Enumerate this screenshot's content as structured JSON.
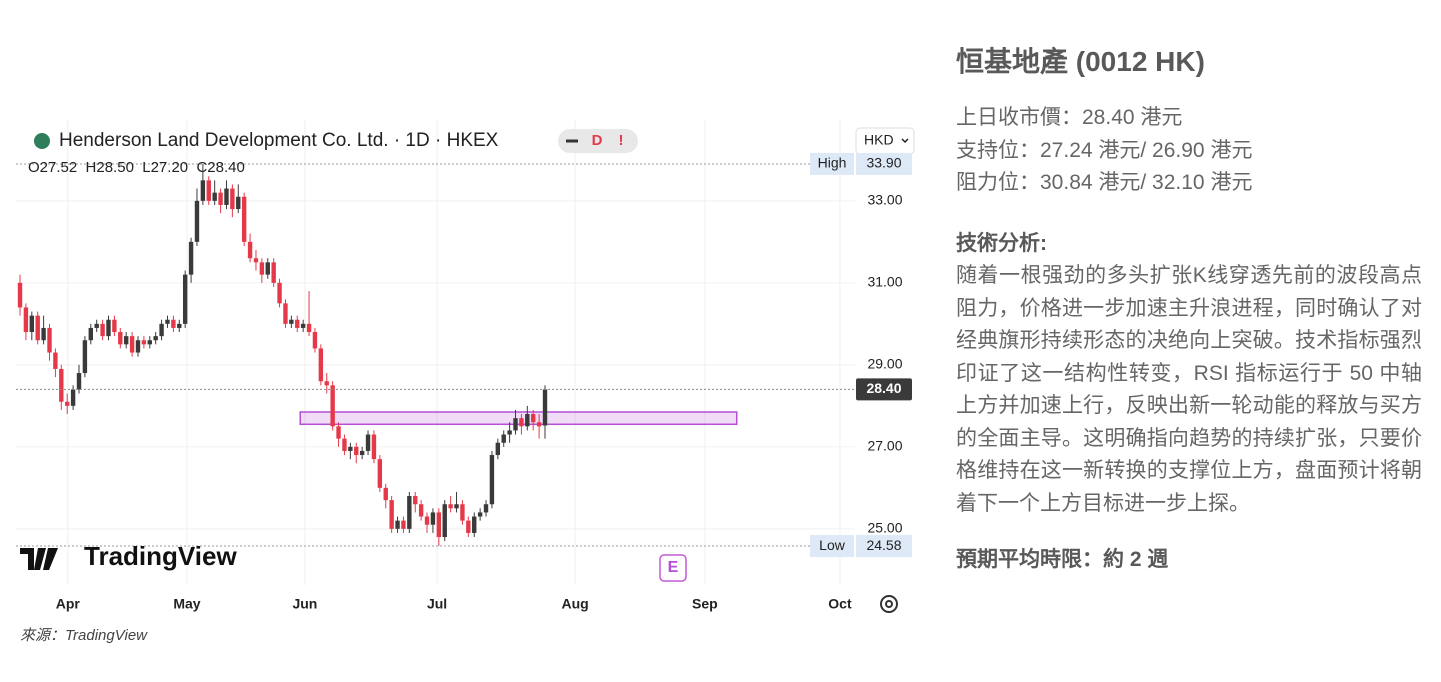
{
  "chart_data": {
    "type": "candlestick",
    "title": "Henderson Land Development Co. Ltd. · 1D · HKEX",
    "badges": [
      "D",
      "!"
    ],
    "currency": "HKD",
    "ohlc_text": "O27.52  H28.50  L27.20  C28.40",
    "logo": "TradingView",
    "event_marker": "E",
    "up_color": "#3a3a3a",
    "down_color": "#e5394a",
    "open": [
      31.0,
      30.4,
      29.8,
      30.2,
      29.6,
      29.9,
      29.3,
      28.9,
      28.1,
      28.0,
      28.4,
      28.8,
      29.6,
      29.9,
      30.0,
      29.7,
      30.1,
      29.8,
      29.5,
      29.7,
      29.3,
      29.6,
      29.5,
      29.6,
      29.7,
      30.0,
      30.1,
      29.9,
      30.0,
      31.2,
      32.0,
      33.0,
      33.5,
      33.0,
      33.2,
      32.9,
      33.3,
      32.8,
      33.1,
      32.0,
      31.6,
      31.5,
      31.2,
      31.5,
      31.0,
      30.5,
      30.0,
      30.1,
      29.9,
      30.0,
      29.8,
      29.4,
      28.6,
      28.5,
      27.5,
      27.2,
      26.9,
      27.0,
      26.8,
      26.9,
      27.3,
      26.7,
      26.0,
      25.7,
      25.0,
      25.2,
      25.0,
      25.8,
      25.6,
      25.3,
      25.1,
      25.4,
      24.8,
      25.6,
      25.5,
      25.6,
      25.2,
      24.9,
      25.3,
      25.4,
      25.6,
      26.8,
      27.1,
      27.3,
      27.4,
      27.7,
      27.5,
      27.8,
      27.6,
      27.52
    ],
    "high": [
      31.2,
      30.5,
      30.3,
      30.3,
      30.2,
      30.0,
      29.4,
      29.0,
      28.3,
      28.5,
      29.0,
      29.7,
      30.0,
      30.1,
      30.1,
      30.2,
      30.2,
      29.9,
      29.8,
      29.8,
      29.7,
      29.7,
      29.7,
      29.8,
      30.1,
      30.2,
      30.2,
      30.1,
      31.3,
      32.1,
      33.3,
      33.9,
      33.6,
      33.5,
      33.3,
      33.5,
      33.4,
      33.4,
      33.2,
      32.2,
      31.8,
      31.6,
      31.6,
      31.6,
      31.1,
      30.6,
      30.2,
      30.2,
      30.1,
      30.8,
      29.9,
      29.5,
      28.8,
      28.6,
      27.6,
      27.3,
      27.1,
      27.1,
      27.0,
      27.4,
      27.4,
      26.8,
      26.1,
      25.8,
      25.3,
      25.3,
      25.9,
      25.9,
      25.7,
      25.4,
      25.5,
      25.5,
      25.7,
      25.8,
      25.9,
      25.7,
      25.3,
      25.4,
      25.5,
      25.7,
      26.9,
      27.2,
      27.4,
      27.6,
      27.9,
      27.8,
      28.0,
      27.9,
      27.8,
      28.5
    ],
    "low": [
      30.2,
      29.6,
      29.6,
      29.5,
      29.5,
      29.1,
      28.7,
      27.9,
      27.8,
      27.9,
      28.3,
      28.7,
      29.5,
      29.8,
      29.6,
      29.6,
      29.7,
      29.4,
      29.4,
      29.2,
      29.2,
      29.4,
      29.4,
      29.5,
      29.6,
      29.9,
      29.8,
      29.8,
      29.9,
      31.0,
      31.9,
      32.9,
      32.9,
      32.9,
      32.7,
      32.8,
      32.6,
      32.7,
      31.9,
      31.5,
      31.3,
      31.0,
      31.1,
      30.9,
      30.4,
      29.9,
      29.9,
      29.8,
      29.8,
      29.7,
      29.3,
      28.5,
      28.3,
      27.4,
      27.0,
      26.8,
      26.7,
      26.6,
      26.7,
      26.8,
      26.6,
      25.9,
      25.5,
      24.9,
      24.9,
      24.9,
      24.9,
      25.4,
      25.2,
      24.9,
      24.9,
      24.58,
      24.7,
      25.4,
      25.4,
      25.1,
      24.8,
      24.8,
      25.2,
      25.3,
      25.5,
      26.7,
      27.0,
      27.1,
      27.3,
      27.3,
      27.4,
      27.4,
      27.2,
      27.2
    ],
    "close": [
      30.4,
      29.8,
      30.2,
      29.6,
      29.9,
      29.3,
      28.9,
      28.1,
      28.0,
      28.4,
      28.8,
      29.6,
      29.9,
      30.0,
      29.7,
      30.1,
      29.8,
      29.5,
      29.7,
      29.3,
      29.6,
      29.5,
      29.6,
      29.7,
      30.0,
      30.1,
      29.9,
      30.0,
      31.2,
      32.0,
      33.0,
      33.5,
      33.0,
      33.2,
      32.9,
      33.3,
      32.8,
      33.1,
      32.0,
      31.6,
      31.5,
      31.2,
      31.5,
      31.0,
      30.5,
      30.0,
      30.1,
      29.9,
      30.0,
      29.8,
      29.4,
      28.6,
      28.5,
      27.5,
      27.2,
      26.9,
      27.0,
      26.8,
      26.9,
      27.3,
      26.7,
      26.0,
      25.7,
      25.0,
      25.2,
      25.0,
      25.8,
      25.6,
      25.3,
      25.1,
      25.4,
      24.8,
      25.6,
      25.5,
      25.6,
      25.2,
      24.9,
      25.3,
      25.4,
      25.6,
      26.8,
      27.1,
      27.3,
      27.4,
      27.7,
      27.5,
      27.8,
      27.6,
      27.5,
      28.4
    ],
    "xlim": [
      -0.68,
      141.55
    ],
    "xticks": [
      {
        "value": 8.1,
        "label": "Apr"
      },
      {
        "value": 28.3,
        "label": "May"
      },
      {
        "value": 48.3,
        "label": "Jun"
      },
      {
        "value": 70.7,
        "label": "Jul"
      },
      {
        "value": 94.1,
        "label": "Aug"
      },
      {
        "value": 116.1,
        "label": "Sep"
      },
      {
        "value": 139.0,
        "label": "Oct"
      }
    ],
    "ylim": [
      23.63,
      34.24
    ],
    "yticks": [
      {
        "value": 25,
        "label": "25.00"
      },
      {
        "value": 27,
        "label": "27.00"
      },
      {
        "value": 29,
        "label": "29.00"
      },
      {
        "value": 31,
        "label": "31.00"
      },
      {
        "value": 33,
        "label": "33.00"
      }
    ],
    "grid": true,
    "price_markers": [
      {
        "name": "High",
        "value": 33.9,
        "label": "33.90"
      },
      {
        "name": "Low",
        "value": 24.58,
        "label": "24.58"
      }
    ],
    "last_price": {
      "value": 28.4,
      "label": "28.40"
    },
    "zone": {
      "xlim": [
        47.5,
        121.5
      ],
      "ylim": [
        27.55,
        27.85
      ],
      "color": "#b44fd6"
    }
  },
  "source": "來源：TradingView",
  "article": {
    "title": "恒基地產 (0012 HK)",
    "levels": [
      "上日收市價：28.40 港元",
      "支持位：27.24 港元/ 26.90 港元",
      "阻力位：30.84 港元/ 32.10 港元"
    ],
    "analysis_heading": "技術分析:",
    "analysis": "随着一根强劲的多头扩张K线穿透先前的波段高点阻力，价格进一步加速主升浪进程，同时确认了对经典旗形持续形态的决绝向上突破。技术指标强烈印证了这一结构性转变，RSI 指标运行于 50 中轴上方并加速上行，反映出新一轮动能的释放与买方的全面主导。这明确指向趋势的持续扩张，只要价格维持在这一新转换的支撑位上方，盘面预计将朝着下一个上方目标进一步上探。",
    "horizon": "預期平均時限：約 2 週"
  }
}
